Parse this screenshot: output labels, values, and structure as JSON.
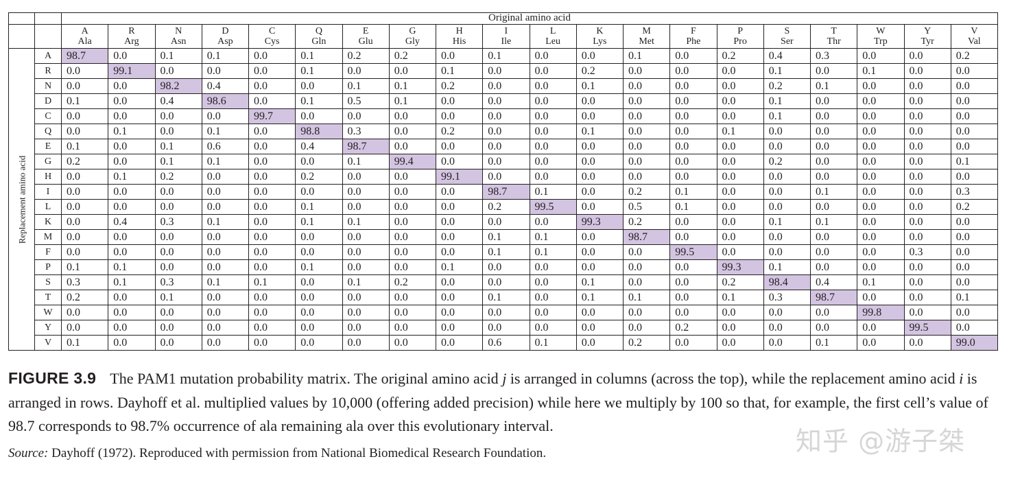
{
  "table": {
    "column_axis_label": "Original amino acid",
    "row_axis_label": "Replacement amino acid",
    "columns": [
      {
        "code": "A",
        "abbr": "Ala"
      },
      {
        "code": "R",
        "abbr": "Arg"
      },
      {
        "code": "N",
        "abbr": "Asn"
      },
      {
        "code": "D",
        "abbr": "Asp"
      },
      {
        "code": "C",
        "abbr": "Cys"
      },
      {
        "code": "Q",
        "abbr": "Gln"
      },
      {
        "code": "E",
        "abbr": "Glu"
      },
      {
        "code": "G",
        "abbr": "Gly"
      },
      {
        "code": "H",
        "abbr": "His"
      },
      {
        "code": "I",
        "abbr": "Ile"
      },
      {
        "code": "L",
        "abbr": "Leu"
      },
      {
        "code": "K",
        "abbr": "Lys"
      },
      {
        "code": "M",
        "abbr": "Met"
      },
      {
        "code": "F",
        "abbr": "Phe"
      },
      {
        "code": "P",
        "abbr": "Pro"
      },
      {
        "code": "S",
        "abbr": "Ser"
      },
      {
        "code": "T",
        "abbr": "Thr"
      },
      {
        "code": "W",
        "abbr": "Trp"
      },
      {
        "code": "Y",
        "abbr": "Tyr"
      },
      {
        "code": "V",
        "abbr": "Val"
      }
    ],
    "rows": [
      {
        "label": "A",
        "values": [
          "98.7",
          "0.0",
          "0.1",
          "0.1",
          "0.0",
          "0.1",
          "0.2",
          "0.2",
          "0.0",
          "0.1",
          "0.0",
          "0.0",
          "0.1",
          "0.0",
          "0.2",
          "0.4",
          "0.3",
          "0.0",
          "0.0",
          "0.2"
        ]
      },
      {
        "label": "R",
        "values": [
          "0.0",
          "99.1",
          "0.0",
          "0.0",
          "0.0",
          "0.1",
          "0.0",
          "0.0",
          "0.1",
          "0.0",
          "0.0",
          "0.2",
          "0.0",
          "0.0",
          "0.0",
          "0.1",
          "0.0",
          "0.1",
          "0.0",
          "0.0"
        ]
      },
      {
        "label": "N",
        "values": [
          "0.0",
          "0.0",
          "98.2",
          "0.4",
          "0.0",
          "0.0",
          "0.1",
          "0.1",
          "0.2",
          "0.0",
          "0.0",
          "0.1",
          "0.0",
          "0.0",
          "0.0",
          "0.2",
          "0.1",
          "0.0",
          "0.0",
          "0.0"
        ]
      },
      {
        "label": "D",
        "values": [
          "0.1",
          "0.0",
          "0.4",
          "98.6",
          "0.0",
          "0.1",
          "0.5",
          "0.1",
          "0.0",
          "0.0",
          "0.0",
          "0.0",
          "0.0",
          "0.0",
          "0.0",
          "0.1",
          "0.0",
          "0.0",
          "0.0",
          "0.0"
        ]
      },
      {
        "label": "C",
        "values": [
          "0.0",
          "0.0",
          "0.0",
          "0.0",
          "99.7",
          "0.0",
          "0.0",
          "0.0",
          "0.0",
          "0.0",
          "0.0",
          "0.0",
          "0.0",
          "0.0",
          "0.0",
          "0.1",
          "0.0",
          "0.0",
          "0.0",
          "0.0"
        ]
      },
      {
        "label": "Q",
        "values": [
          "0.0",
          "0.1",
          "0.0",
          "0.1",
          "0.0",
          "98.8",
          "0.3",
          "0.0",
          "0.2",
          "0.0",
          "0.0",
          "0.1",
          "0.0",
          "0.0",
          "0.1",
          "0.0",
          "0.0",
          "0.0",
          "0.0",
          "0.0"
        ]
      },
      {
        "label": "E",
        "values": [
          "0.1",
          "0.0",
          "0.1",
          "0.6",
          "0.0",
          "0.4",
          "98.7",
          "0.0",
          "0.0",
          "0.0",
          "0.0",
          "0.0",
          "0.0",
          "0.0",
          "0.0",
          "0.0",
          "0.0",
          "0.0",
          "0.0",
          "0.0"
        ]
      },
      {
        "label": "G",
        "values": [
          "0.2",
          "0.0",
          "0.1",
          "0.1",
          "0.0",
          "0.0",
          "0.1",
          "99.4",
          "0.0",
          "0.0",
          "0.0",
          "0.0",
          "0.0",
          "0.0",
          "0.0",
          "0.2",
          "0.0",
          "0.0",
          "0.0",
          "0.1"
        ]
      },
      {
        "label": "H",
        "values": [
          "0.0",
          "0.1",
          "0.2",
          "0.0",
          "0.0",
          "0.2",
          "0.0",
          "0.0",
          "99.1",
          "0.0",
          "0.0",
          "0.0",
          "0.0",
          "0.0",
          "0.0",
          "0.0",
          "0.0",
          "0.0",
          "0.0",
          "0.0"
        ]
      },
      {
        "label": "I",
        "values": [
          "0.0",
          "0.0",
          "0.0",
          "0.0",
          "0.0",
          "0.0",
          "0.0",
          "0.0",
          "0.0",
          "98.7",
          "0.1",
          "0.0",
          "0.2",
          "0.1",
          "0.0",
          "0.0",
          "0.1",
          "0.0",
          "0.0",
          "0.3"
        ]
      },
      {
        "label": "L",
        "values": [
          "0.0",
          "0.0",
          "0.0",
          "0.0",
          "0.0",
          "0.1",
          "0.0",
          "0.0",
          "0.0",
          "0.2",
          "99.5",
          "0.0",
          "0.5",
          "0.1",
          "0.0",
          "0.0",
          "0.0",
          "0.0",
          "0.0",
          "0.2"
        ]
      },
      {
        "label": "K",
        "values": [
          "0.0",
          "0.4",
          "0.3",
          "0.1",
          "0.0",
          "0.1",
          "0.1",
          "0.0",
          "0.0",
          "0.0",
          "0.0",
          "99.3",
          "0.2",
          "0.0",
          "0.0",
          "0.1",
          "0.1",
          "0.0",
          "0.0",
          "0.0"
        ]
      },
      {
        "label": "M",
        "values": [
          "0.0",
          "0.0",
          "0.0",
          "0.0",
          "0.0",
          "0.0",
          "0.0",
          "0.0",
          "0.0",
          "0.1",
          "0.1",
          "0.0",
          "98.7",
          "0.0",
          "0.0",
          "0.0",
          "0.0",
          "0.0",
          "0.0",
          "0.0"
        ]
      },
      {
        "label": "F",
        "values": [
          "0.0",
          "0.0",
          "0.0",
          "0.0",
          "0.0",
          "0.0",
          "0.0",
          "0.0",
          "0.0",
          "0.1",
          "0.1",
          "0.0",
          "0.0",
          "99.5",
          "0.0",
          "0.0",
          "0.0",
          "0.0",
          "0.3",
          "0.0"
        ]
      },
      {
        "label": "P",
        "values": [
          "0.1",
          "0.1",
          "0.0",
          "0.0",
          "0.0",
          "0.1",
          "0.0",
          "0.0",
          "0.1",
          "0.0",
          "0.0",
          "0.0",
          "0.0",
          "0.0",
          "99.3",
          "0.1",
          "0.0",
          "0.0",
          "0.0",
          "0.0"
        ]
      },
      {
        "label": "S",
        "values": [
          "0.3",
          "0.1",
          "0.3",
          "0.1",
          "0.1",
          "0.0",
          "0.1",
          "0.2",
          "0.0",
          "0.0",
          "0.0",
          "0.1",
          "0.0",
          "0.0",
          "0.2",
          "98.4",
          "0.4",
          "0.1",
          "0.0",
          "0.0"
        ]
      },
      {
        "label": "T",
        "values": [
          "0.2",
          "0.0",
          "0.1",
          "0.0",
          "0.0",
          "0.0",
          "0.0",
          "0.0",
          "0.0",
          "0.1",
          "0.0",
          "0.1",
          "0.1",
          "0.0",
          "0.1",
          "0.3",
          "98.7",
          "0.0",
          "0.0",
          "0.1"
        ]
      },
      {
        "label": "W",
        "values": [
          "0.0",
          "0.0",
          "0.0",
          "0.0",
          "0.0",
          "0.0",
          "0.0",
          "0.0",
          "0.0",
          "0.0",
          "0.0",
          "0.0",
          "0.0",
          "0.0",
          "0.0",
          "0.0",
          "0.0",
          "99.8",
          "0.0",
          "0.0"
        ]
      },
      {
        "label": "Y",
        "values": [
          "0.0",
          "0.0",
          "0.0",
          "0.0",
          "0.0",
          "0.0",
          "0.0",
          "0.0",
          "0.0",
          "0.0",
          "0.0",
          "0.0",
          "0.0",
          "0.2",
          "0.0",
          "0.0",
          "0.0",
          "0.0",
          "99.5",
          "0.0"
        ]
      },
      {
        "label": "V",
        "values": [
          "0.1",
          "0.0",
          "0.0",
          "0.0",
          "0.0",
          "0.0",
          "0.0",
          "0.0",
          "0.0",
          "0.6",
          "0.1",
          "0.0",
          "0.2",
          "0.0",
          "0.0",
          "0.0",
          "0.1",
          "0.0",
          "0.0",
          "99.0"
        ]
      }
    ],
    "highlight_color": "#d3c4e1"
  },
  "caption": {
    "label": "FIGURE 3.9",
    "t1": "The PAM1 mutation probability matrix. The original amino acid ",
    "j": "j",
    "t2": " is arranged in columns (across the top), while the replacement amino acid ",
    "i": "i",
    "t3": " is arranged in rows. Dayhoff et al. multiplied values by 10,000 (offering added precision) while here we multiply by 100 so that, for example, the first cell’s value of 98.7 corresponds to 98.7% occurrence of ala remaining ala over this evolutionary interval."
  },
  "source": {
    "label": "Source:",
    "text": " Dayhoff (1972). Reproduced with permission from National Biomedical Research Foundation."
  },
  "watermark": "知乎 @游子桀"
}
